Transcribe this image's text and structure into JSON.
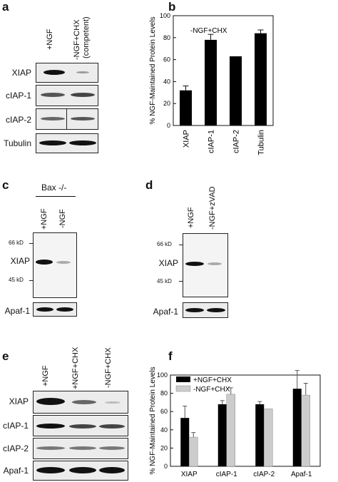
{
  "panels": {
    "a": {
      "letter": "a",
      "lanes": [
        "+NGF",
        "-NGF+CHX",
        "(competent)"
      ],
      "rows": [
        "XIAP",
        "cIAP-1",
        "cIAP-2",
        "Tubulin"
      ]
    },
    "b": {
      "letter": "b",
      "chart_data": {
        "type": "bar",
        "title": "",
        "annotation": "-NGF+CHX",
        "ylabel": "% NGF-Maintained Protein Levels",
        "ylim": [
          0,
          100
        ],
        "yticks": [
          0,
          20,
          40,
          60,
          80,
          100
        ],
        "categories": [
          "XIAP",
          "cIAP-1",
          "cIAP-2",
          "Tubulin"
        ],
        "values": [
          32,
          78,
          63,
          84
        ],
        "errors": [
          4,
          5,
          0,
          3
        ],
        "color": "#000000"
      }
    },
    "c": {
      "letter": "c",
      "header": "Bax -/-",
      "lanes": [
        "+NGF",
        "-NGF"
      ],
      "markers": [
        "66 kD",
        "45 kD"
      ],
      "rows": [
        "XIAP",
        "Apaf-1"
      ]
    },
    "d": {
      "letter": "d",
      "lanes": [
        "+NGF",
        "-NGF+zVAD"
      ],
      "markers": [
        "66 kD",
        "45 kD"
      ],
      "rows": [
        "XIAP",
        "Apaf-1"
      ]
    },
    "e": {
      "letter": "e",
      "lanes": [
        "+NGF",
        "+NGF+CHX",
        "-NGF+CHX"
      ],
      "rows": [
        "XIAP",
        "cIAP-1",
        "cIAP-2",
        "Apaf-1"
      ]
    },
    "f": {
      "letter": "f",
      "chart_data": {
        "type": "bar",
        "title": "",
        "ylabel": "% NGF-Maintained Protein Levels",
        "ylim": [
          0,
          100
        ],
        "yticks": [
          0,
          20,
          40,
          60,
          80,
          100
        ],
        "categories": [
          "XIAP",
          "cIAP-1",
          "cIAP-2",
          "Apaf-1"
        ],
        "series": [
          {
            "name": "+NGF+CHX",
            "color": "#000000",
            "values": [
              53,
              68,
              68,
              85
            ],
            "errors": [
              13,
              4,
              3,
              20
            ]
          },
          {
            "name": "-NGF+CHX",
            "color": "#cccccc",
            "values": [
              32,
              79,
              63,
              78
            ],
            "errors": [
              5,
              7,
              0,
              13
            ]
          }
        ],
        "legend": "top-left"
      }
    }
  }
}
